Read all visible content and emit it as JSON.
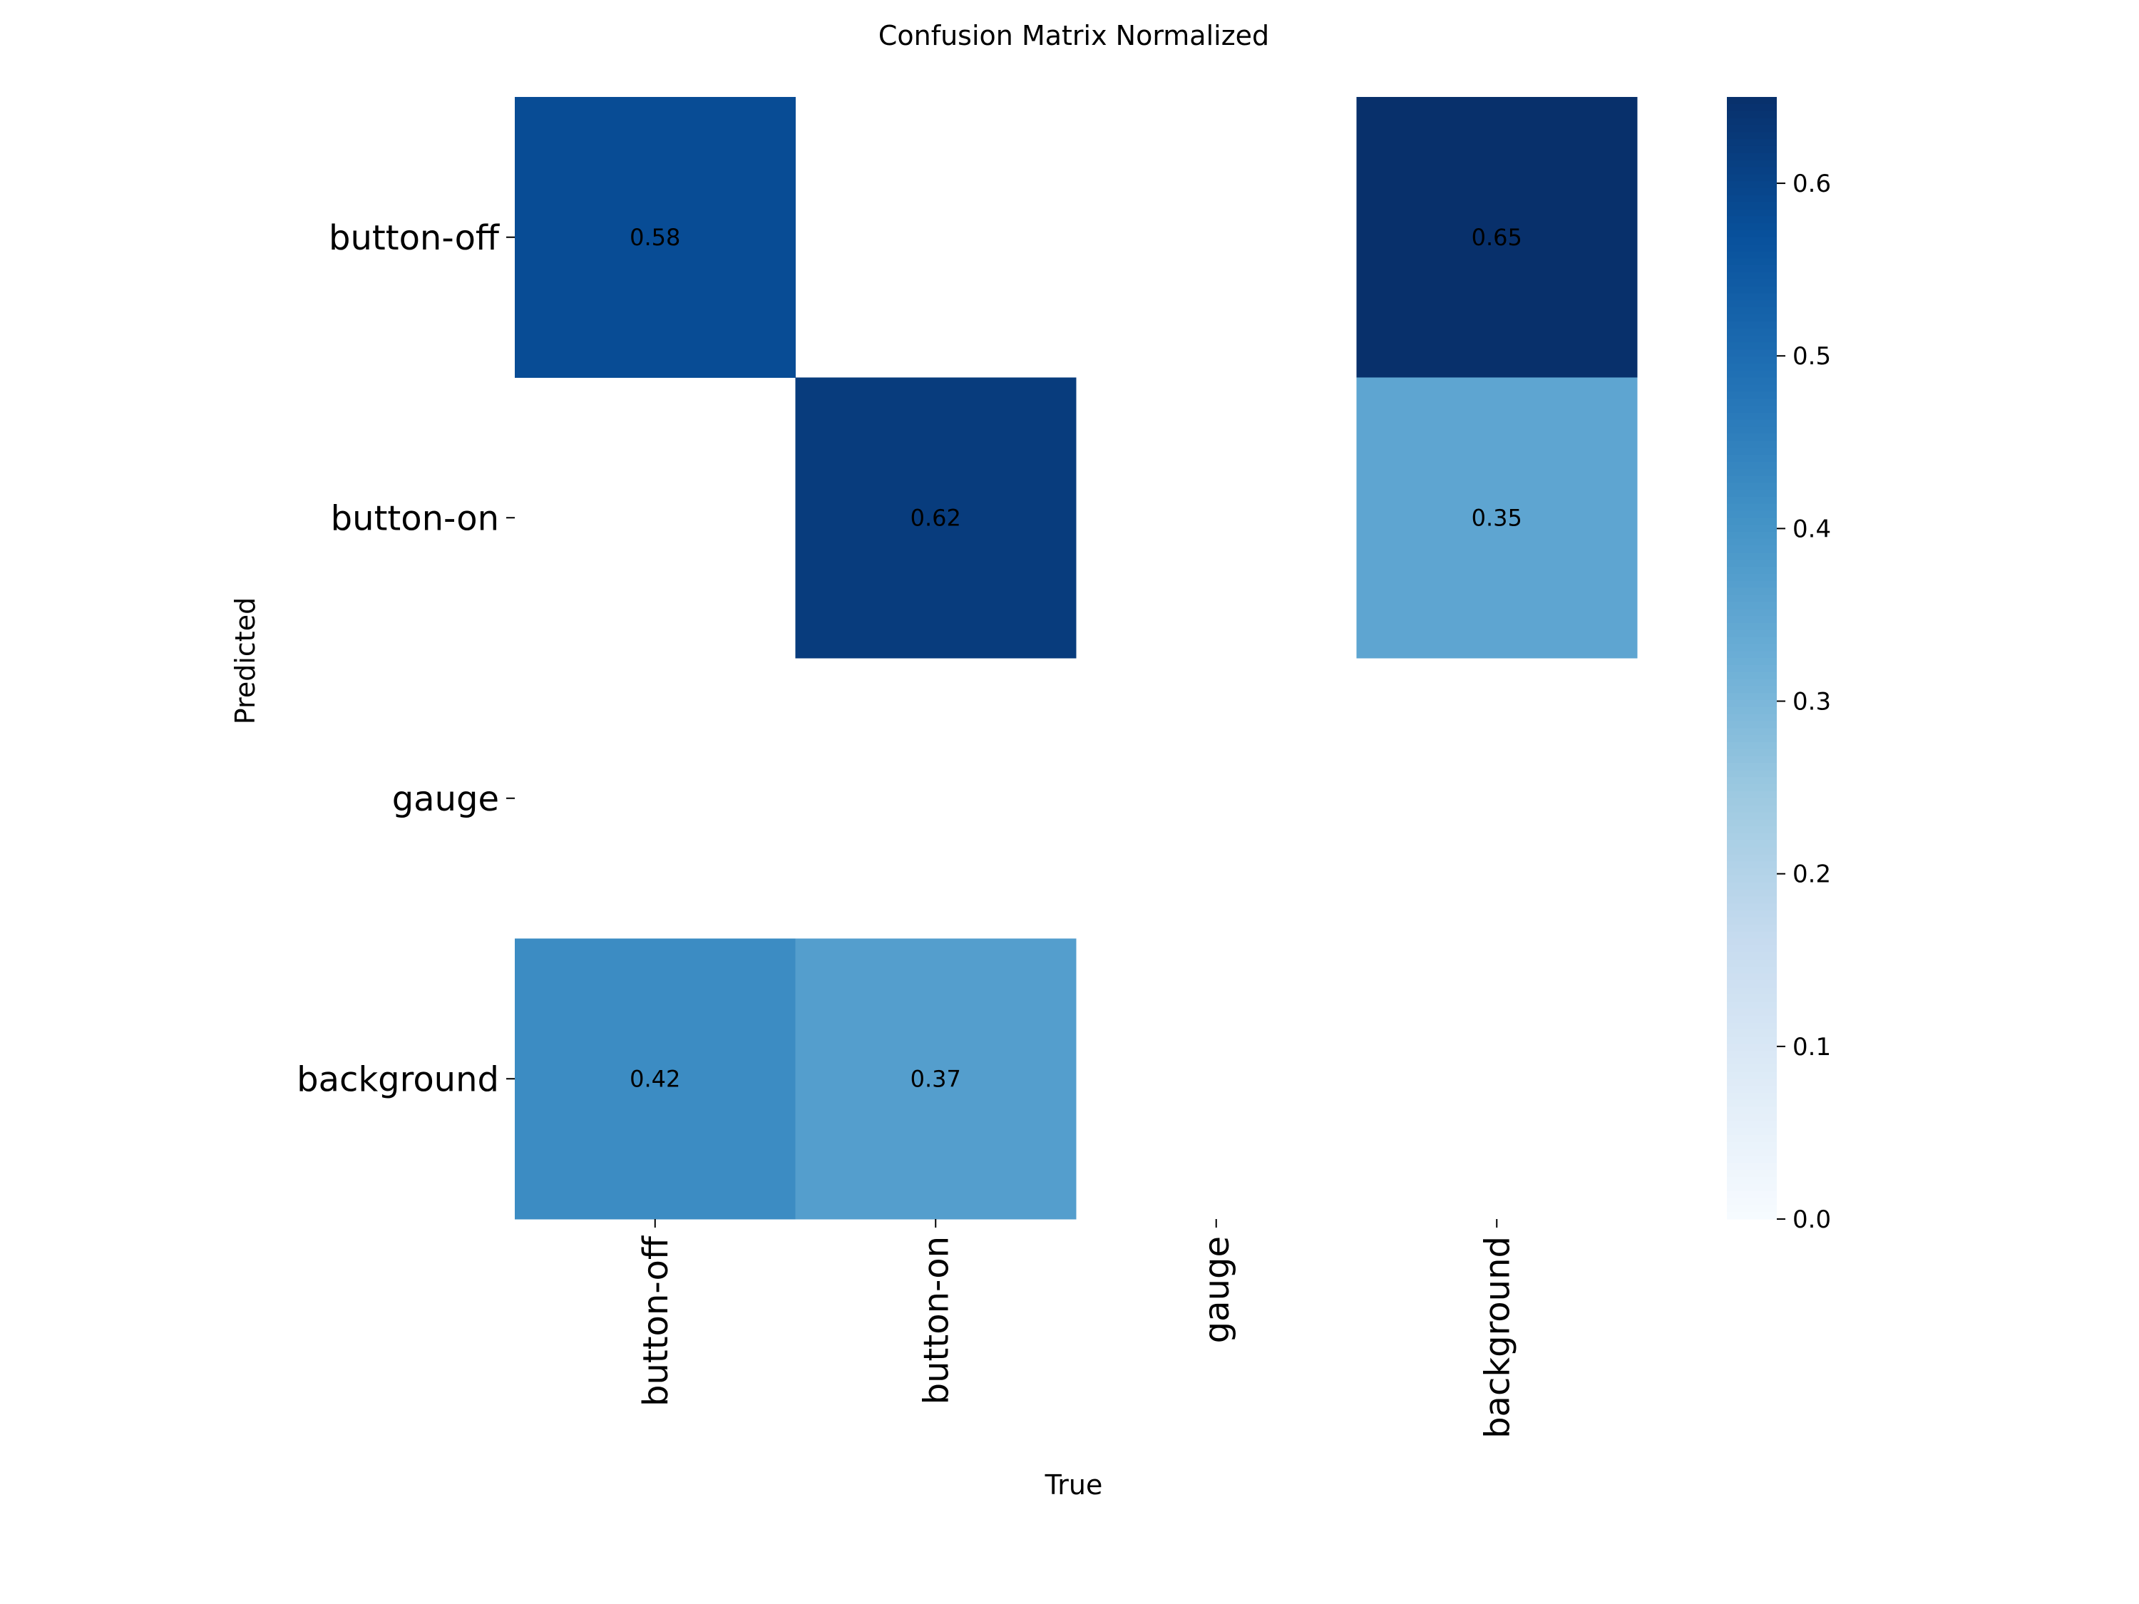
{
  "chart_data": {
    "type": "heatmap",
    "title": "Confusion Matrix Normalized",
    "xlabel": "True",
    "ylabel": "Predicted",
    "x_categories": [
      "button-off",
      "button-on",
      "gauge",
      "background"
    ],
    "y_categories": [
      "button-off",
      "button-on",
      "gauge",
      "background"
    ],
    "matrix": [
      [
        0.58,
        null,
        null,
        0.65
      ],
      [
        null,
        0.62,
        null,
        0.35
      ],
      [
        null,
        null,
        null,
        null
      ],
      [
        0.42,
        0.37,
        null,
        null
      ]
    ],
    "colormap": "Blues",
    "colorbar": {
      "range": [
        0.0,
        0.65
      ],
      "ticks": [
        0.0,
        0.1,
        0.2,
        0.3,
        0.4,
        0.5,
        0.6
      ],
      "tick_labels": [
        "0.0",
        "0.1",
        "0.2",
        "0.3",
        "0.4",
        "0.5",
        "0.6"
      ]
    },
    "value_format": 2,
    "grid": false,
    "legend": "none"
  }
}
